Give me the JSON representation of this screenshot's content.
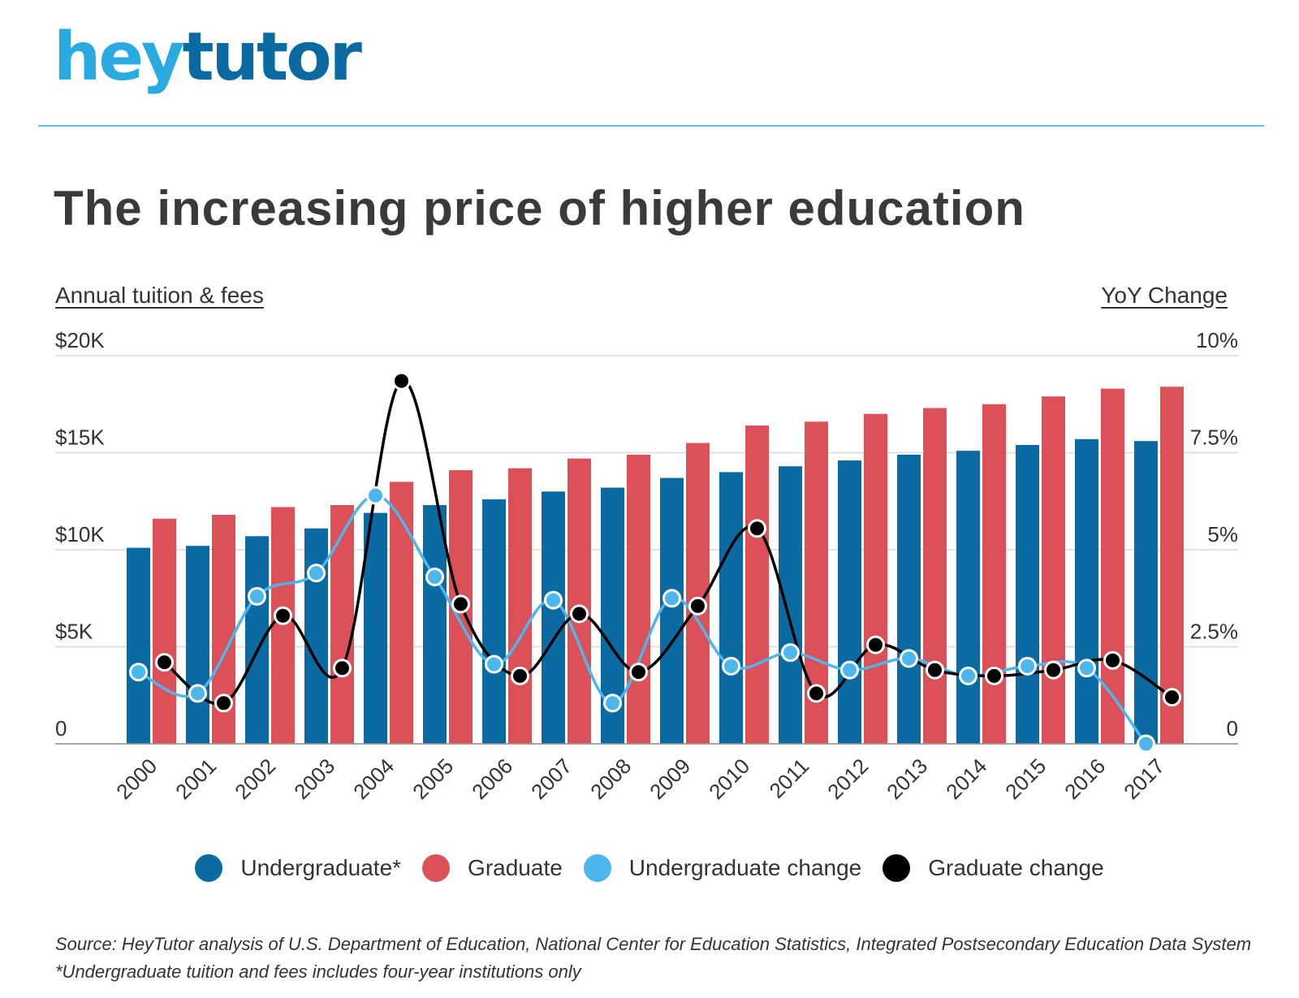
{
  "header": {
    "logo_hey": "hey",
    "logo_tutor": "tutor",
    "title": "The increasing price of higher education"
  },
  "colors": {
    "undergraduate": "#0a6aa1",
    "graduate": "#dc5058",
    "undergraduate_change": "#4db6ec",
    "graduate_change": "#000000",
    "gridline": "#d9d9d9",
    "brand_light": "#29abe2",
    "brand_dark": "#0b6aa2"
  },
  "chart_data": {
    "type": "bar",
    "title": "The increasing price of higher education",
    "left_axis_label": "Annual tuition & fees",
    "right_axis_label": "YoY Change",
    "left_ylim": [
      0,
      20000
    ],
    "right_ylim": [
      0,
      10
    ],
    "left_ticks": [
      "0",
      "$5K",
      "$10K",
      "$15K",
      "$20K"
    ],
    "right_ticks": [
      "0",
      "2.5%",
      "5%",
      "7.5%",
      "10%"
    ],
    "grid": true,
    "legend_position": "bottom",
    "categories": [
      "2000",
      "2001",
      "2002",
      "2003",
      "2004",
      "2005",
      "2006",
      "2007",
      "2008",
      "2009",
      "2010",
      "2011",
      "2012",
      "2013",
      "2014",
      "2015",
      "2016",
      "2017"
    ],
    "series": [
      {
        "name": "Undergraduate*",
        "type": "bar",
        "axis": "left",
        "values": [
          10100,
          10200,
          10700,
          11100,
          11900,
          12300,
          12600,
          13000,
          13200,
          13700,
          14000,
          14300,
          14600,
          14900,
          15100,
          15400,
          15700,
          15600
        ]
      },
      {
        "name": "Graduate",
        "type": "bar",
        "axis": "left",
        "values": [
          11600,
          11800,
          12200,
          12300,
          13500,
          14100,
          14200,
          14700,
          14900,
          15500,
          16400,
          16600,
          17000,
          17300,
          17500,
          17900,
          18300,
          18400
        ]
      },
      {
        "name": "Undergraduate change",
        "type": "line",
        "axis": "right",
        "values": [
          1.85,
          1.3,
          3.8,
          4.4,
          6.4,
          4.3,
          2.05,
          3.7,
          1.05,
          3.75,
          2.0,
          2.35,
          1.9,
          2.2,
          1.75,
          2.0,
          1.95,
          0.0
        ]
      },
      {
        "name": "Graduate change",
        "type": "line",
        "axis": "right",
        "values": [
          2.1,
          1.05,
          3.3,
          1.95,
          9.35,
          3.6,
          1.75,
          3.35,
          1.85,
          3.55,
          5.55,
          1.3,
          2.55,
          1.9,
          1.75,
          1.9,
          2.15,
          1.2
        ]
      }
    ]
  },
  "footer": {
    "source": "Source: HeyTutor analysis of U.S. Department of Education, National Center for Education Statistics, Integrated Postsecondary Education Data System",
    "note": "*Undergraduate tuition and fees includes four-year institutions only"
  }
}
